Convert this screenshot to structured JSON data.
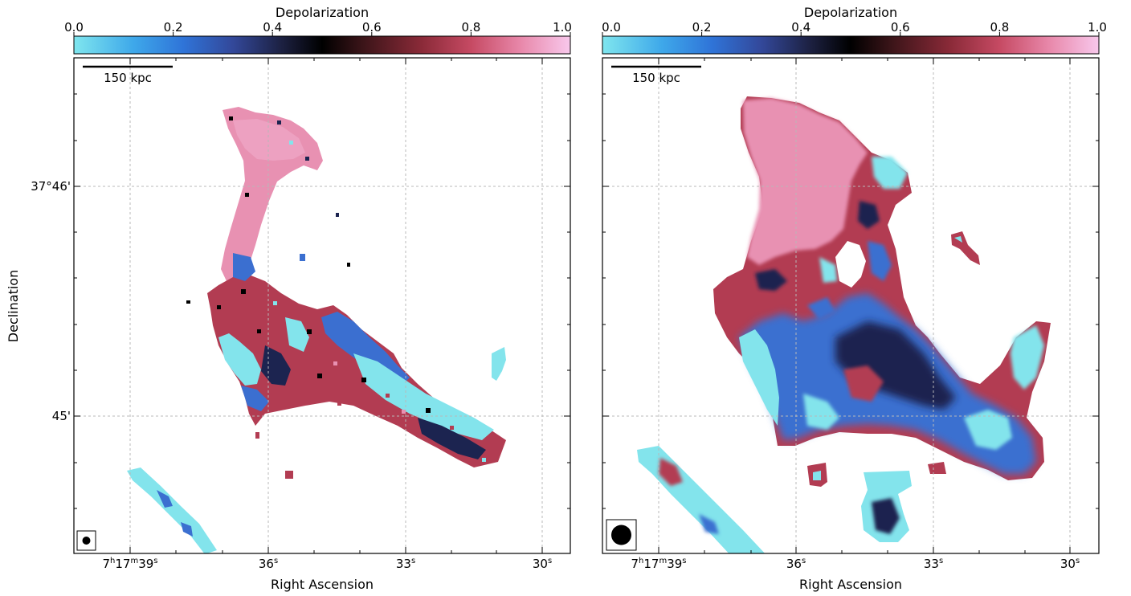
{
  "figure": {
    "ylabel": "Declination",
    "colors": {
      "cmap": [
        "#7fe6ee",
        "#2f8fe0",
        "#3a5fc0",
        "#2a2f55",
        "#000000",
        "#3a1418",
        "#8a2a38",
        "#c64a63",
        "#e888aa",
        "#f8c8ec"
      ],
      "gridline": "#b8b8b8",
      "pink": "#e891b2",
      "maroon": "#b23c52",
      "cyan": "#83e4ec",
      "blue": "#3b6fd0",
      "navy": "#1c2450"
    }
  },
  "chart_data": [
    {
      "type": "heatmap",
      "panel": "left",
      "colorbar": {
        "label": "Depolarization",
        "range": [
          0.0,
          1.0
        ],
        "ticks": [
          "0.0",
          "0.2",
          "0.4",
          "0.6",
          "0.8",
          "1.0"
        ]
      },
      "xlabel": "Right Ascension",
      "ylabel": "Declination",
      "xticks": [
        {
          "label": "7h17m39s",
          "h": "7",
          "m": "17",
          "s": "39"
        },
        {
          "label": "36s",
          "s": "36"
        },
        {
          "label": "33s",
          "s": "33"
        },
        {
          "label": "30s",
          "s": "30"
        }
      ],
      "yticks": [
        "37°46'",
        "45'"
      ],
      "scalebar": "150 kpc",
      "grid": true,
      "beam": "small"
    },
    {
      "type": "heatmap",
      "panel": "right",
      "colorbar": {
        "label": "Depolarization",
        "range": [
          0.0,
          1.0
        ],
        "ticks": [
          "0.0",
          "0.2",
          "0.4",
          "0.6",
          "0.8",
          "1.0"
        ]
      },
      "xlabel": "Right Ascension",
      "xticks": [
        {
          "label": "7h17m39s",
          "h": "7",
          "m": "17",
          "s": "39"
        },
        {
          "label": "36s",
          "s": "36"
        },
        {
          "label": "33s",
          "s": "33"
        },
        {
          "label": "30s",
          "s": "30"
        }
      ],
      "scalebar": "150 kpc",
      "grid": true,
      "beam": "large"
    }
  ]
}
